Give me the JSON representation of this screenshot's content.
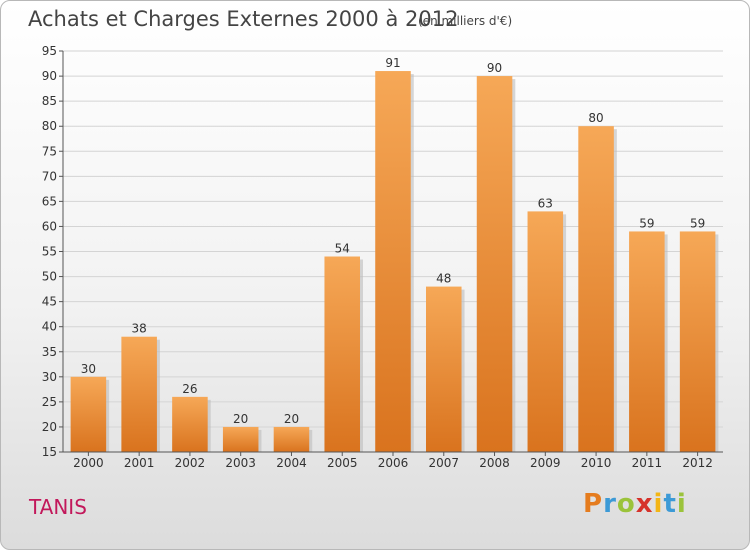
{
  "title": "Achats et Charges Externes 2000 à 2012",
  "unit": "(en milliers d'€)",
  "place": "TANIS",
  "logo": {
    "text": "Proxiti",
    "letters": [
      {
        "ch": "P",
        "color": "#e57c1e"
      },
      {
        "ch": "r",
        "color": "#3c9ad6"
      },
      {
        "ch": "o",
        "color": "#9bc33b"
      },
      {
        "ch": "x",
        "color": "#d6322b"
      },
      {
        "ch": "i",
        "color": "#f3b515"
      },
      {
        "ch": "t",
        "color": "#3c9ad6"
      },
      {
        "ch": "i",
        "color": "#9bc33b"
      }
    ]
  },
  "chart_data": {
    "type": "bar",
    "categories": [
      "2000",
      "2001",
      "2002",
      "2003",
      "2004",
      "2005",
      "2006",
      "2007",
      "2008",
      "2009",
      "2010",
      "2011",
      "2012"
    ],
    "values": [
      30,
      38,
      26,
      20,
      20,
      54,
      91,
      48,
      90,
      63,
      80,
      59,
      59
    ],
    "ylim": [
      15,
      95
    ],
    "yticks": [
      15,
      20,
      25,
      30,
      35,
      40,
      45,
      50,
      55,
      60,
      65,
      70,
      75,
      80,
      85,
      90,
      95
    ],
    "grid": true,
    "bar_color_top": "#f6a857",
    "bar_color_bottom": "#d9731e"
  }
}
